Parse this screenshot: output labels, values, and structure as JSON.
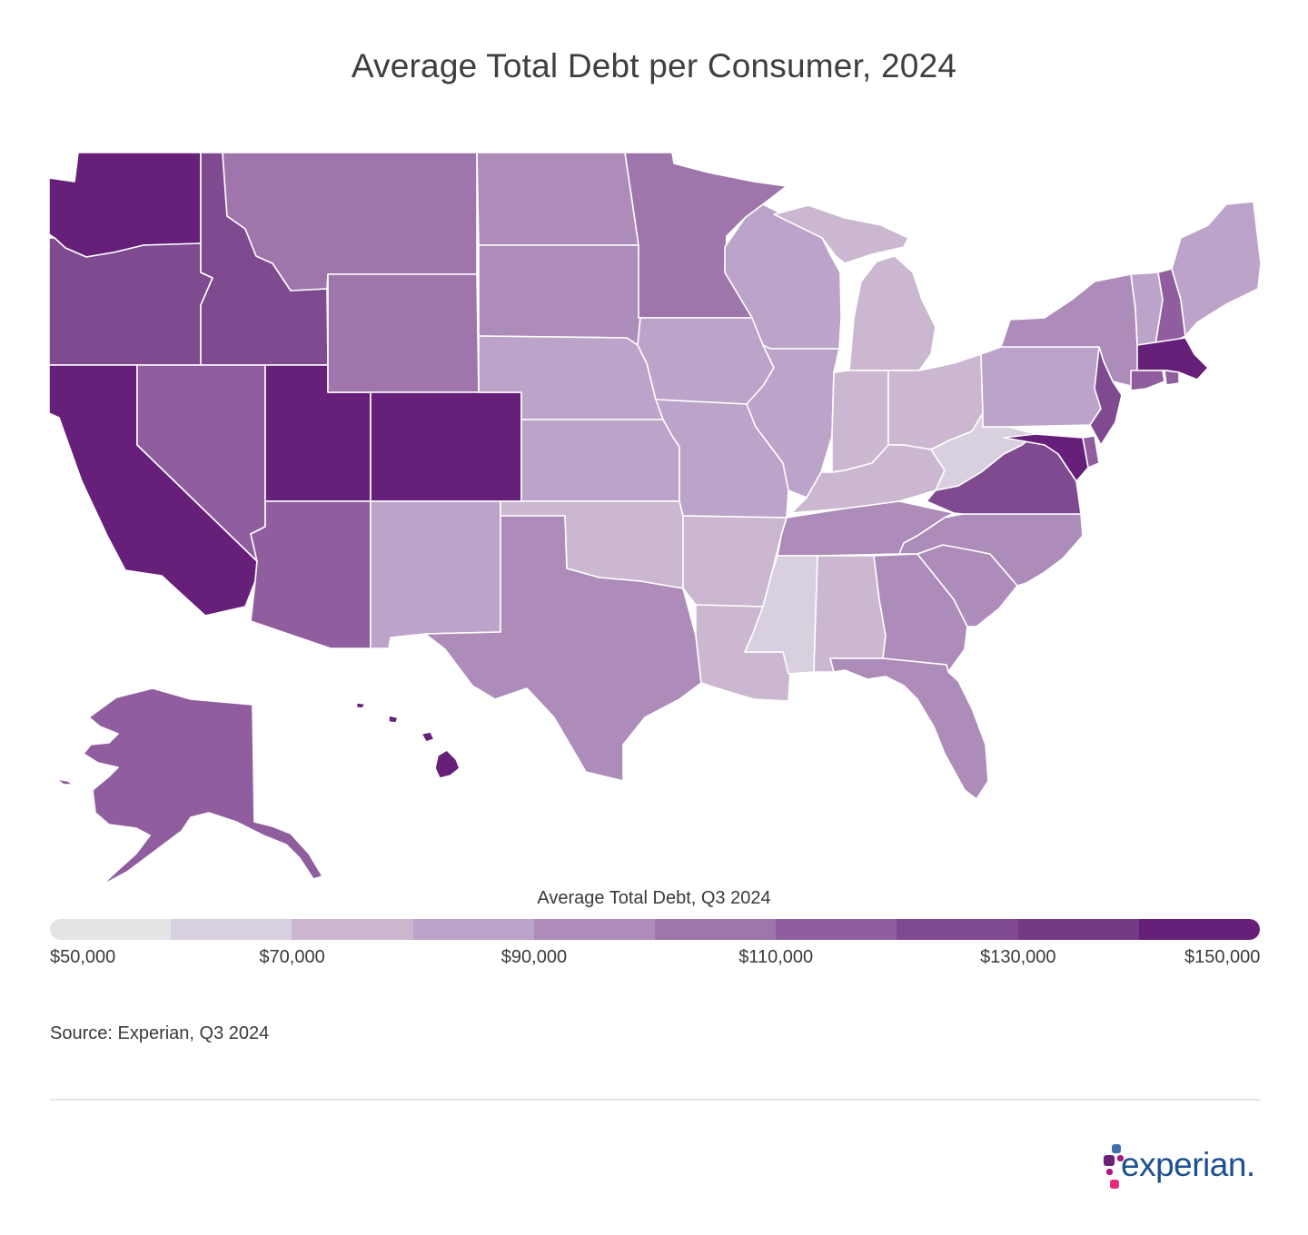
{
  "title": "Average Total Debt per Consumer, 2024",
  "legend": {
    "title": "Average Total Debt, Q3 2024",
    "ticks": [
      "$50,000",
      "$70,000",
      "$90,000",
      "$110,000",
      "$130,000",
      "$150,000"
    ],
    "colors": [
      "#e4e3e6",
      "#d8cfdf",
      "#ccb7d1",
      "#bca3c9",
      "#ad8cb9",
      "#9f76ab",
      "#905e9e",
      "#7f4a90",
      "#733a85",
      "#66207a"
    ]
  },
  "source": "Source: Experian, Q3 2024",
  "logo": {
    "text": "experian."
  },
  "map_data": {
    "metric": "Average Total Debt, Q3 2024",
    "color_scale_min": 50000,
    "color_scale_max": 150000,
    "state_colors": {
      "WA": "#66207a",
      "OR": "#7f4a90",
      "CA": "#66207a",
      "ID": "#7f4a90",
      "NV": "#905e9e",
      "UT": "#66207a",
      "AZ": "#905e9e",
      "MT": "#9f76ab",
      "WY": "#9f76ab",
      "CO": "#66207a",
      "NM": "#bca3c9",
      "ND": "#ad8cb9",
      "SD": "#ad8cb9",
      "NE": "#bca3c9",
      "KS": "#bca3c9",
      "OK": "#ccb7d1",
      "TX": "#ad8cb9",
      "MN": "#9f76ab",
      "IA": "#bca3c9",
      "MO": "#bca3c9",
      "AR": "#ccb7d1",
      "LA": "#ccb7d1",
      "WI": "#bca3c9",
      "IL": "#bca3c9",
      "MI": "#ccb7d1",
      "IN": "#ccb7d1",
      "OH": "#ccb7d1",
      "KY": "#ccb7d1",
      "TN": "#ad8cb9",
      "MS": "#d8cfdf",
      "AL": "#ccb7d1",
      "GA": "#ad8cb9",
      "FL": "#ad8cb9",
      "SC": "#ad8cb9",
      "NC": "#ad8cb9",
      "VA": "#7f4a90",
      "WV": "#d8cfdf",
      "PA": "#bca3c9",
      "NY": "#ad8cb9",
      "VT": "#bca3c9",
      "NH": "#905e9e",
      "ME": "#bca3c9",
      "MA": "#66207a",
      "RI": "#905e9e",
      "CT": "#905e9e",
      "NJ": "#7f4a90",
      "DE": "#905e9e",
      "MD": "#66207a",
      "AK": "#905e9e",
      "HI": "#66207a"
    }
  }
}
